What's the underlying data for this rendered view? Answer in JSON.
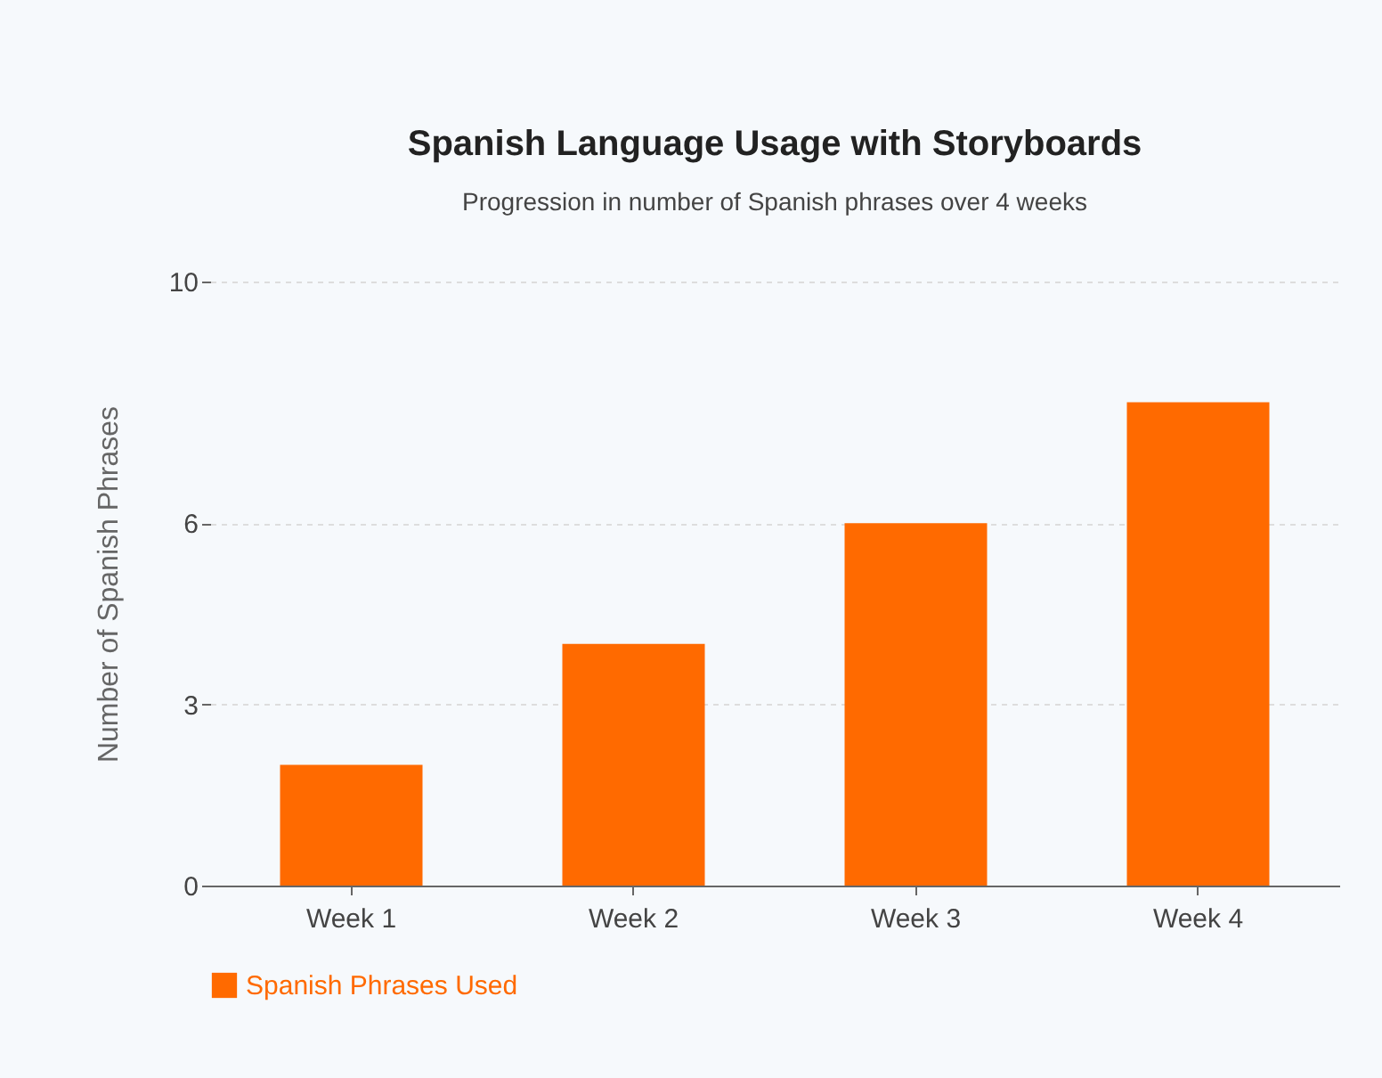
{
  "chart_data": {
    "type": "bar",
    "title": "Spanish Language Usage with Storyboards",
    "subtitle": "Progression in number of Spanish phrases over 4 weeks",
    "ylabel": "Number of Spanish Phrases",
    "categories": [
      "Week 1",
      "Week 2",
      "Week 3",
      "Week 4"
    ],
    "series": [
      {
        "name": "Spanish Phrases Used",
        "color": "#ff6a00",
        "values": [
          2,
          4,
          6,
          8
        ]
      }
    ],
    "ylim": [
      0,
      10
    ],
    "yticks": [
      0,
      3,
      6,
      10
    ],
    "grid": "y",
    "legend": "bottom"
  }
}
